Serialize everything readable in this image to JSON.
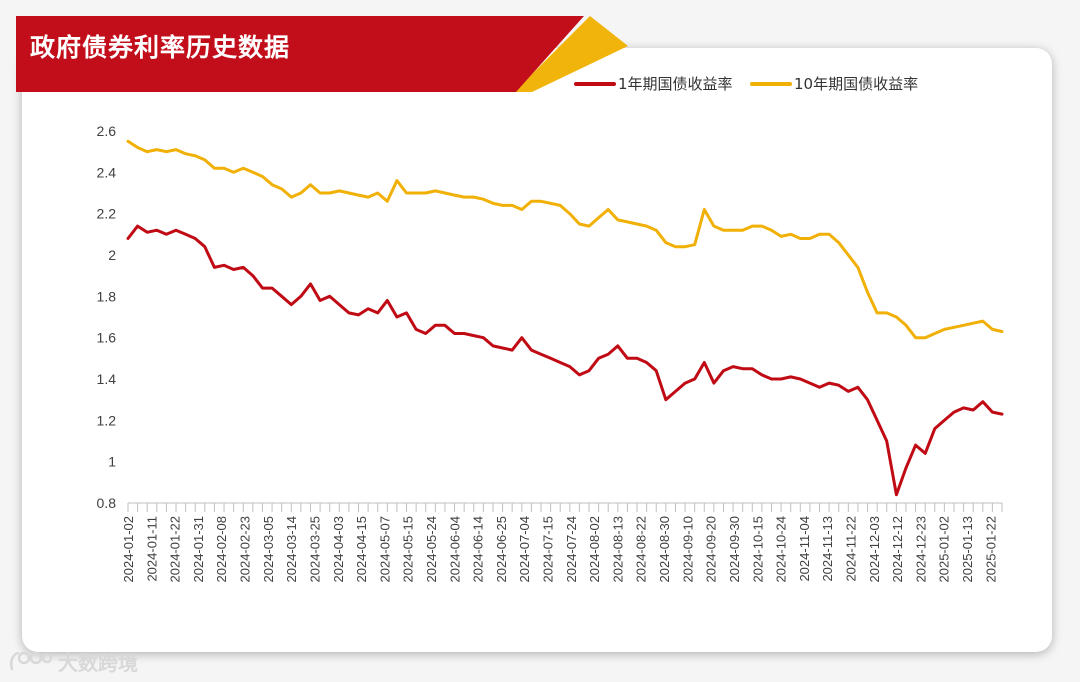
{
  "header": {
    "title": "政府债券利率历史数据"
  },
  "watermark": {
    "text": "大数跨境",
    "logo_icon": "dashujk-logo-icon"
  },
  "colors": {
    "banner_red": "#C20E1A",
    "banner_gold": "#F1B40A",
    "series_1y": "#C00A14",
    "series_10y": "#F1B005",
    "axis": "#bfbfbf",
    "tick_text": "#404040"
  },
  "chart_data": {
    "type": "line",
    "title": "",
    "xlabel": "",
    "ylabel": "",
    "ylim": [
      0.8,
      2.6
    ],
    "yticks": [
      0.8,
      1,
      1.2,
      1.4,
      1.6,
      1.8,
      2,
      2.2,
      2.4,
      2.6
    ],
    "ytick_labels": [
      "0.8",
      "1",
      "1.2",
      "1.4",
      "1.6",
      "1.8",
      "2",
      "2.2",
      "2.4",
      "2.6"
    ],
    "grid": false,
    "legend": "top-right",
    "x_tick_labels": [
      "2024-01-02",
      "2024-01-11",
      "2024-01-22",
      "2024-01-31",
      "2024-02-08",
      "2024-02-23",
      "2024-03-05",
      "2024-03-14",
      "2024-03-25",
      "2024-04-03",
      "2024-04-15",
      "2024-05-07",
      "2024-05-15",
      "2024-05-24",
      "2024-06-04",
      "2024-06-14",
      "2024-06-25",
      "2024-07-04",
      "2024-07-15",
      "2024-07-24",
      "2024-08-02",
      "2024-08-13",
      "2024-08-22",
      "2024-08-30",
      "2024-09-10",
      "2024-09-20",
      "2024-09-30",
      "2024-10-15",
      "2024-10-24",
      "2024-11-04",
      "2024-11-13",
      "2024-11-22",
      "2024-12-03",
      "2024-12-12",
      "2024-12-23",
      "2025-01-02",
      "2025-01-13",
      "2025-01-22"
    ],
    "series": [
      {
        "name": "1年期国债收益率",
        "values": [
          2.08,
          2.14,
          2.11,
          2.12,
          2.1,
          2.12,
          2.1,
          2.08,
          2.04,
          1.94,
          1.95,
          1.93,
          1.94,
          1.9,
          1.84,
          1.84,
          1.8,
          1.76,
          1.8,
          1.86,
          1.78,
          1.8,
          1.76,
          1.72,
          1.71,
          1.74,
          1.72,
          1.78,
          1.7,
          1.72,
          1.64,
          1.62,
          1.66,
          1.66,
          1.62,
          1.62,
          1.61,
          1.6,
          1.56,
          1.55,
          1.54,
          1.6,
          1.54,
          1.52,
          1.5,
          1.48,
          1.46,
          1.42,
          1.44,
          1.5,
          1.52,
          1.56,
          1.5,
          1.5,
          1.48,
          1.44,
          1.3,
          1.34,
          1.38,
          1.4,
          1.48,
          1.38,
          1.44,
          1.46,
          1.45,
          1.45,
          1.42,
          1.4,
          1.4,
          1.41,
          1.4,
          1.38,
          1.36,
          1.38,
          1.37,
          1.34,
          1.36,
          1.3,
          1.2,
          1.1,
          0.84,
          0.97,
          1.08,
          1.04,
          1.16,
          1.2,
          1.24,
          1.26,
          1.25,
          1.29,
          1.24,
          1.23
        ]
      },
      {
        "name": "10年期国债收益率",
        "values": [
          2.55,
          2.52,
          2.5,
          2.51,
          2.5,
          2.51,
          2.49,
          2.48,
          2.46,
          2.42,
          2.42,
          2.4,
          2.42,
          2.4,
          2.38,
          2.34,
          2.32,
          2.28,
          2.3,
          2.34,
          2.3,
          2.3,
          2.31,
          2.3,
          2.29,
          2.28,
          2.3,
          2.26,
          2.36,
          2.3,
          2.3,
          2.3,
          2.31,
          2.3,
          2.29,
          2.28,
          2.28,
          2.27,
          2.25,
          2.24,
          2.24,
          2.22,
          2.26,
          2.26,
          2.25,
          2.24,
          2.2,
          2.15,
          2.14,
          2.18,
          2.22,
          2.17,
          2.16,
          2.15,
          2.14,
          2.12,
          2.06,
          2.04,
          2.04,
          2.05,
          2.22,
          2.14,
          2.12,
          2.12,
          2.12,
          2.14,
          2.14,
          2.12,
          2.09,
          2.1,
          2.08,
          2.08,
          2.1,
          2.1,
          2.06,
          2.0,
          1.94,
          1.82,
          1.72,
          1.72,
          1.7,
          1.66,
          1.6,
          1.6,
          1.62,
          1.64,
          1.65,
          1.66,
          1.67,
          1.68,
          1.64,
          1.63
        ]
      }
    ]
  }
}
